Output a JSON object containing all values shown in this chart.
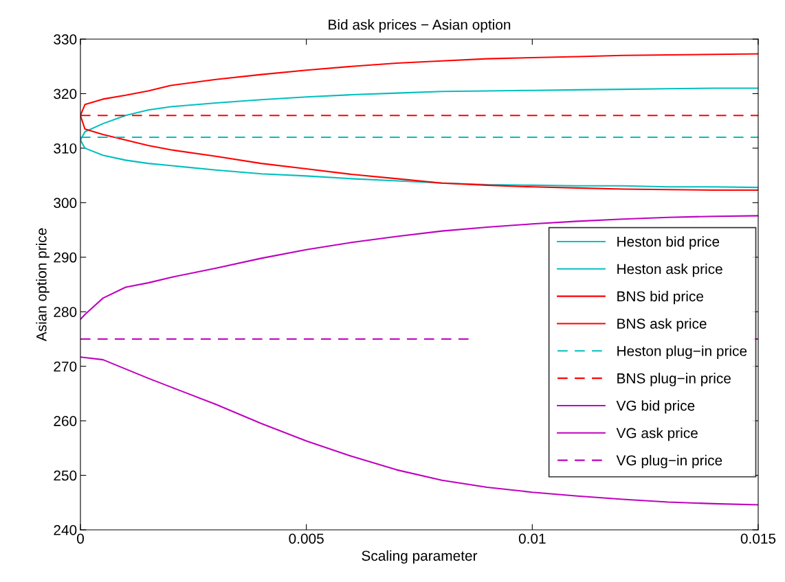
{
  "chart_data": {
    "type": "line",
    "title": "Bid ask prices − Asian option",
    "xlabel": "Scaling parameter",
    "ylabel": "Asian option price",
    "x": [
      0,
      0.0001,
      0.0005,
      0.001,
      0.0015,
      0.002,
      0.003,
      0.004,
      0.005,
      0.006,
      0.007,
      0.008,
      0.009,
      0.01,
      0.011,
      0.012,
      0.013,
      0.014,
      0.015
    ],
    "series": [
      {
        "name": "Heston bid price",
        "color": "#00bfbf",
        "line_style": "solid",
        "values": [
          311.5,
          313,
          314.5,
          316,
          317,
          317.6,
          318.3,
          318.9,
          319.4,
          319.8,
          320.1,
          320.4,
          320.5,
          320.6,
          320.7,
          320.8,
          320.9,
          321,
          321
        ]
      },
      {
        "name": "Heston ask price",
        "color": "#00bfbf",
        "line_style": "solid",
        "values": [
          311.5,
          310,
          308.7,
          307.8,
          307.2,
          306.8,
          306,
          305.3,
          304.9,
          304.4,
          304,
          303.6,
          303.3,
          303.2,
          303.1,
          303.1,
          302.9,
          302.9,
          302.8
        ]
      },
      {
        "name": "BNS bid price",
        "color": "#ff0000",
        "line_style": "solid",
        "values": [
          316,
          318,
          319,
          319.7,
          320.5,
          321.5,
          322.6,
          323.5,
          324.3,
          325,
          325.6,
          326,
          326.4,
          326.6,
          326.8,
          327,
          327.1,
          327.2,
          327.3
        ]
      },
      {
        "name": "BNS ask price",
        "color": "#ff0000",
        "line_style": "solid",
        "values": [
          316,
          313.5,
          312.5,
          311.5,
          310.5,
          309.7,
          308.5,
          307.2,
          306.2,
          305.2,
          304.4,
          303.6,
          303.2,
          302.9,
          302.7,
          302.5,
          302.4,
          302.3,
          302.3
        ]
      },
      {
        "name": "Heston plug−in price",
        "color": "#00bfbf",
        "line_style": "dashed",
        "values": [
          312,
          312,
          312,
          312,
          312,
          312,
          312,
          312,
          312,
          312,
          312,
          312,
          312,
          312,
          312,
          312,
          312,
          312,
          312
        ]
      },
      {
        "name": "BNS plug−in price",
        "color": "#ff0000",
        "line_style": "dashed",
        "values": [
          316,
          316,
          316,
          316,
          316,
          316,
          316,
          316,
          316,
          316,
          316,
          316,
          316,
          316,
          316,
          316,
          316,
          316,
          316
        ]
      },
      {
        "name": "VG bid price",
        "color": "#bf00bf",
        "line_style": "solid",
        "values": [
          278.6,
          279.5,
          282.5,
          284.5,
          285.3,
          286.3,
          288,
          289.8,
          291.4,
          292.7,
          293.8,
          294.8,
          295.5,
          296.1,
          296.6,
          297,
          297.3,
          297.5,
          297.6
        ]
      },
      {
        "name": "VG ask price",
        "color": "#bf00bf",
        "line_style": "solid",
        "values": [
          271.7,
          271.6,
          271.2,
          269.5,
          267.8,
          266.2,
          263,
          259.5,
          256.3,
          253.5,
          251,
          249.1,
          247.8,
          246.9,
          246.2,
          245.6,
          245.1,
          244.8,
          244.6
        ]
      },
      {
        "name": "VG plug−in price",
        "color": "#bf00bf",
        "line_style": "dashed",
        "x": [
          0,
          0.0086,
          0.01,
          0.0149,
          0.015
        ],
        "values": [
          275,
          275,
          null,
          275,
          275
        ]
      }
    ],
    "xlim": [
      0,
      0.015
    ],
    "xticks": [
      0,
      0.005,
      0.01,
      0.015
    ],
    "ylim": [
      240,
      330
    ],
    "yticks": [
      240,
      250,
      260,
      270,
      280,
      290,
      300,
      310,
      320,
      330
    ],
    "grid": false,
    "legend": "right",
    "marker": "none"
  }
}
